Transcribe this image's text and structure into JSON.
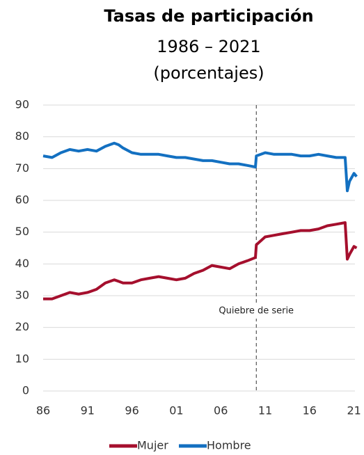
{
  "chart_data": {
    "type": "line",
    "title": "Tasas de participación",
    "subtitle": [
      "1986 – 2021",
      "(porcentajes)"
    ],
    "x": [
      1986,
      1987,
      1988,
      1989,
      1990,
      1991,
      1992,
      1993,
      1994,
      1994.5,
      1995,
      1996,
      1997,
      1998,
      1999,
      2000,
      2001,
      2002,
      2003,
      2004,
      2005,
      2006,
      2007,
      2008,
      2009,
      2009.9,
      2010,
      2011,
      2012,
      2013,
      2014,
      2015,
      2016,
      2017,
      2018,
      2019,
      2020,
      2020.25,
      2020.5,
      2021,
      2021.3
    ],
    "series": [
      {
        "name": "Mujer",
        "color": "#a50f2d",
        "values": [
          29,
          29,
          30,
          31,
          30.5,
          31,
          32,
          34,
          35,
          34.5,
          34,
          34,
          35,
          35.5,
          36,
          35.5,
          35,
          35.5,
          37,
          38,
          39.5,
          39,
          38.5,
          40,
          41,
          42,
          46,
          48.5,
          49,
          49.5,
          50,
          50.5,
          50.5,
          51,
          52,
          52.5,
          53,
          41.5,
          43,
          45.5,
          45
        ]
      },
      {
        "name": "Hombre",
        "color": "#1370c1",
        "values": [
          74,
          73.5,
          75,
          76,
          75.5,
          76,
          75.5,
          77,
          78,
          77.5,
          76.5,
          75,
          74.5,
          74.5,
          74.5,
          74,
          73.5,
          73.5,
          73,
          72.5,
          72.5,
          72,
          71.5,
          71.5,
          71,
          70.5,
          74,
          75,
          74.5,
          74.5,
          74.5,
          74,
          74,
          74.5,
          74,
          73.5,
          73.5,
          63,
          66,
          68.5,
          67.5
        ]
      }
    ],
    "xlim": [
      1986,
      2021.5
    ],
    "xticks": [
      {
        "value": 1986,
        "label": "86"
      },
      {
        "value": 1991,
        "label": "91"
      },
      {
        "value": 1996,
        "label": "96"
      },
      {
        "value": 2001,
        "label": "01"
      },
      {
        "value": 2006,
        "label": "06"
      },
      {
        "value": 2011,
        "label": "11"
      },
      {
        "value": 2016,
        "label": "16"
      },
      {
        "value": 2021,
        "label": "21"
      }
    ],
    "ylim": [
      0,
      90
    ],
    "yticks": [
      0,
      10,
      20,
      30,
      40,
      50,
      60,
      70,
      80,
      90
    ],
    "grid": true,
    "annotation": {
      "text": "Quiebre de serie",
      "x": 2010
    },
    "legend": "bottom"
  }
}
